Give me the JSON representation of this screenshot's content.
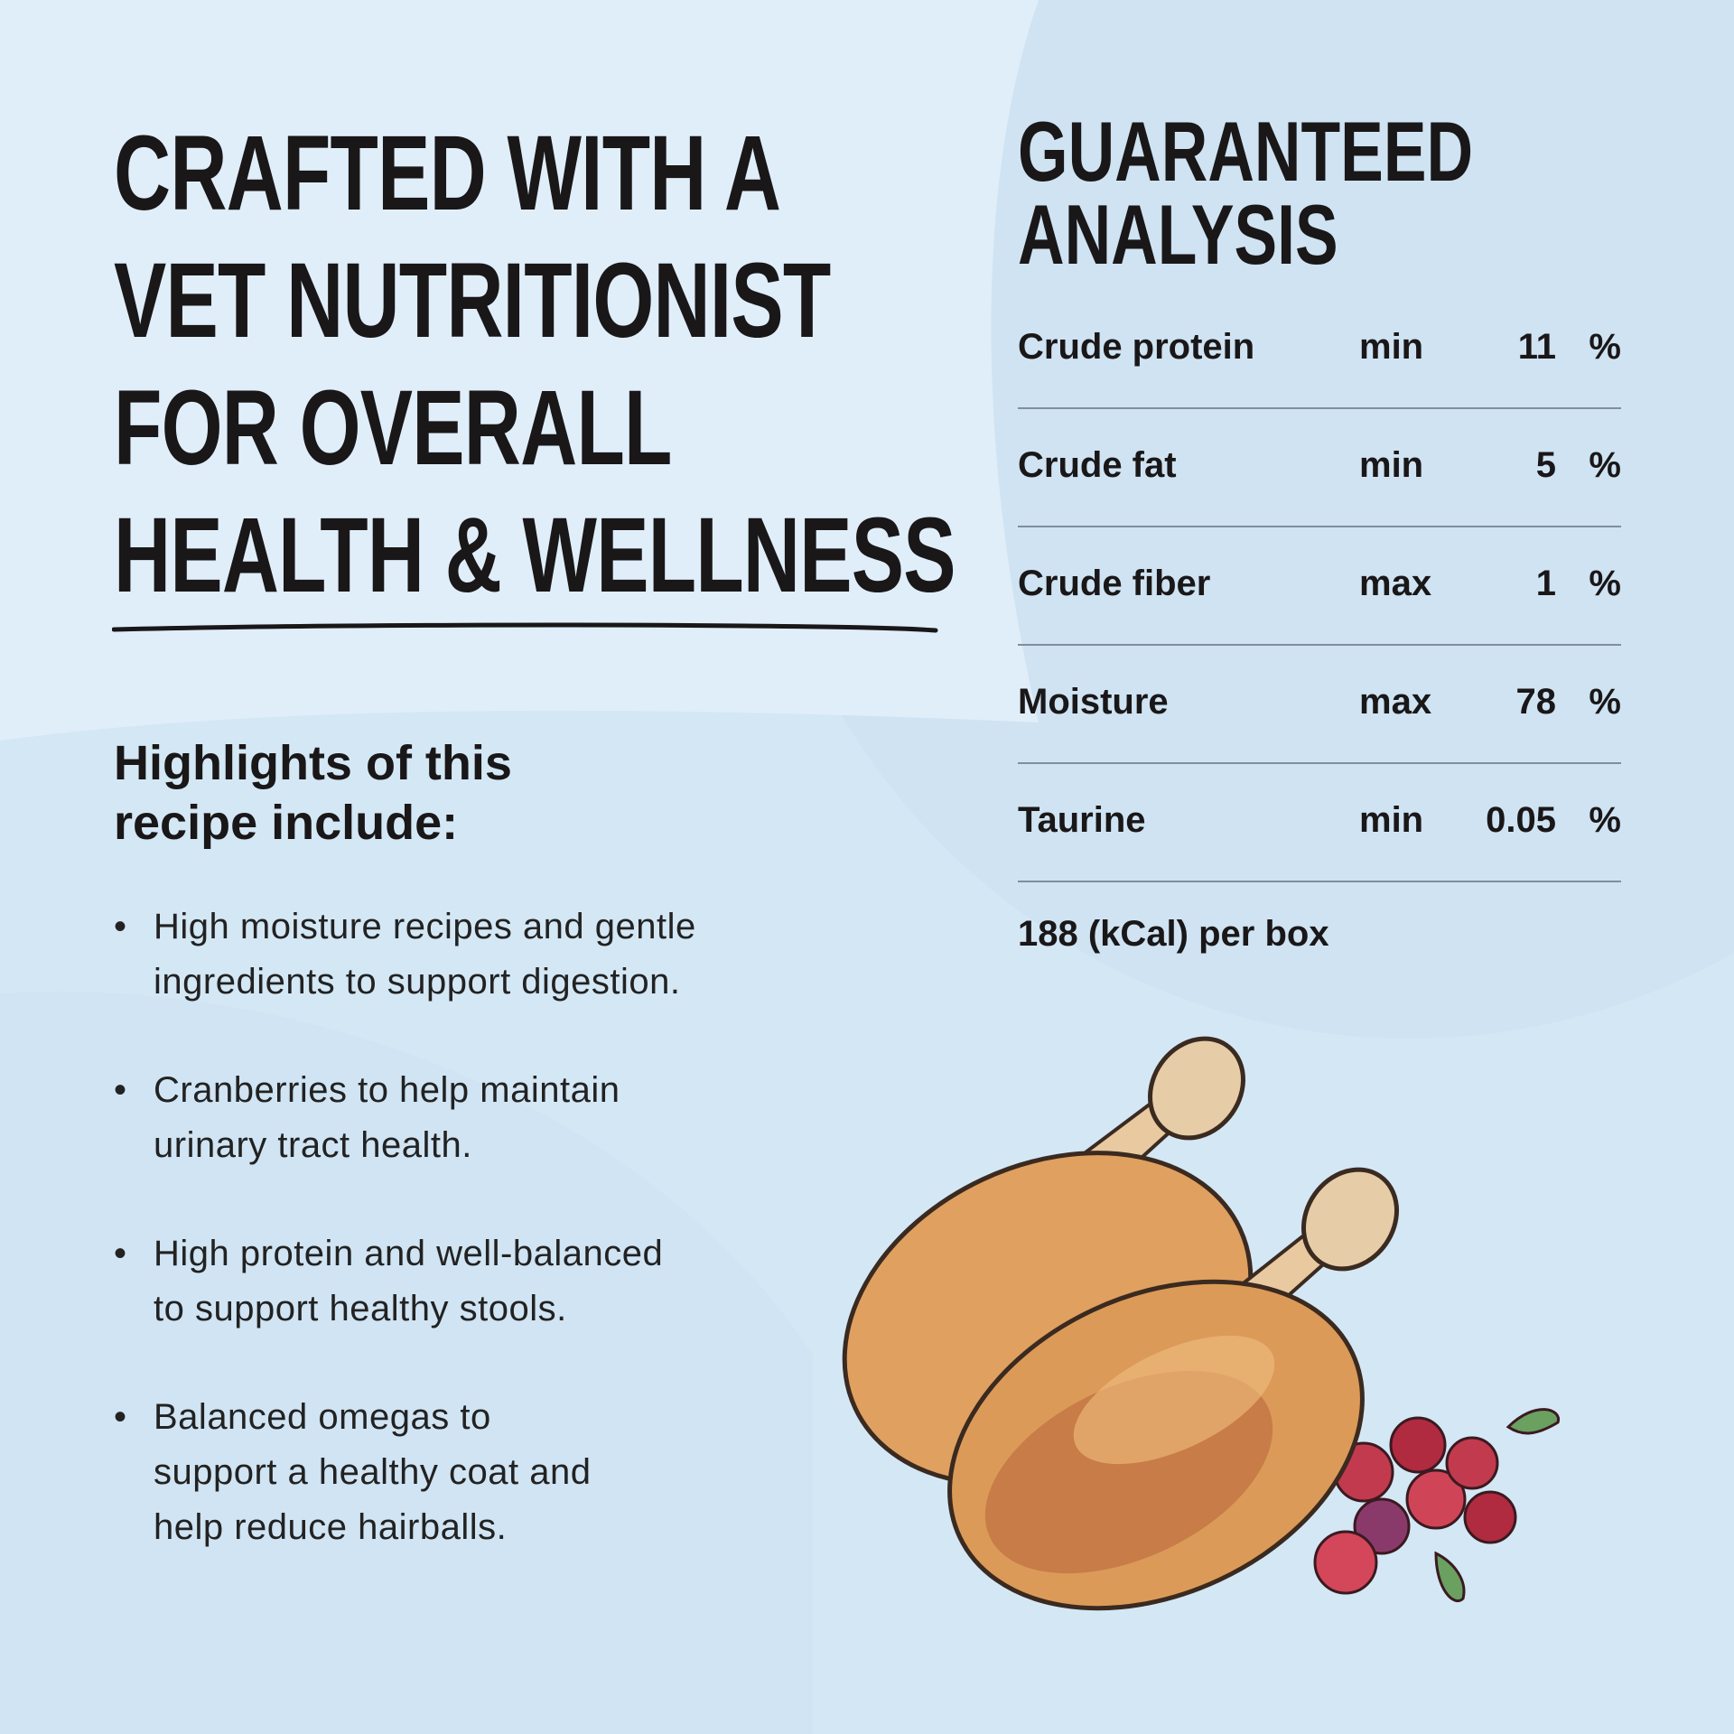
{
  "headline": {
    "lines": [
      "CRAFTED WITH A",
      "VET NUTRITIONIST",
      "FOR OVERALL",
      "HEALTH & WELLNESS"
    ]
  },
  "highlights": {
    "heading_lines": [
      "Highlights of this",
      "recipe include:"
    ],
    "items": [
      {
        "lines": [
          "High moisture recipes and gentle",
          "ingredients to support digestion."
        ]
      },
      {
        "lines": [
          "Cranberries to help maintain",
          "urinary tract health."
        ]
      },
      {
        "lines": [
          "High protein and well-balanced",
          "to support healthy stools."
        ]
      },
      {
        "lines": [
          "Balanced omegas to",
          "support a healthy coat and",
          "help reduce hairballs."
        ]
      }
    ]
  },
  "analysis": {
    "title_lines": [
      "GUARANTEED",
      "ANALYSIS"
    ],
    "rows": [
      {
        "name": "Crude protein",
        "qualifier": "min",
        "value": "11",
        "unit": "%"
      },
      {
        "name": "Crude fat",
        "qualifier": "min",
        "value": "5",
        "unit": "%"
      },
      {
        "name": "Crude fiber",
        "qualifier": "max",
        "value": "1",
        "unit": "%"
      },
      {
        "name": "Moisture",
        "qualifier": "max",
        "value": "78",
        "unit": "%"
      },
      {
        "name": "Taurine",
        "qualifier": "min",
        "value": "0.05",
        "unit": "%"
      }
    ],
    "calories": "188 (kCal) per box"
  },
  "colors": {
    "background": "#d6e9f6",
    "text": "#1a1718",
    "divider": "#7f8f9c"
  },
  "illustration": {
    "icon": "chicken-drumsticks-with-cranberries-illustration"
  }
}
